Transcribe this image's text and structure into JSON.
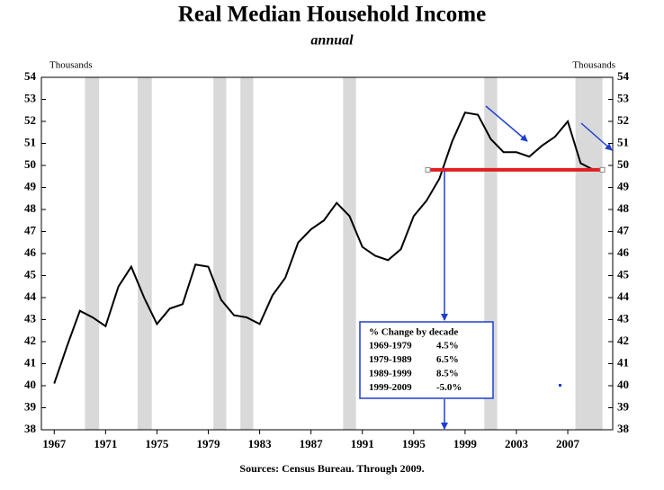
{
  "chart_data": {
    "type": "line",
    "title": "Real Median Household Income",
    "subtitle": "annual",
    "y_axis_label": "Thousands",
    "y2_axis_label": "Thousands",
    "source": "Sources: Census Bureau.  Through  2009.",
    "x": [
      1967,
      1968,
      1969,
      1970,
      1971,
      1972,
      1973,
      1974,
      1975,
      1976,
      1977,
      1978,
      1979,
      1980,
      1981,
      1982,
      1983,
      1984,
      1985,
      1986,
      1987,
      1988,
      1989,
      1990,
      1991,
      1992,
      1993,
      1994,
      1995,
      1996,
      1997,
      1998,
      1999,
      2000,
      2001,
      2002,
      2003,
      2004,
      2005,
      2006,
      2007,
      2008,
      2009
    ],
    "values": [
      40.1,
      41.8,
      43.4,
      43.1,
      42.7,
      44.5,
      45.4,
      44.0,
      42.8,
      43.5,
      43.7,
      45.5,
      45.4,
      43.9,
      43.2,
      43.1,
      42.8,
      44.1,
      44.9,
      46.5,
      47.1,
      47.5,
      48.3,
      47.7,
      46.3,
      45.9,
      45.7,
      46.2,
      47.7,
      48.4,
      49.4,
      51.1,
      52.4,
      52.3,
      51.2,
      50.6,
      50.6,
      50.4,
      50.9,
      51.3,
      52.0,
      50.1,
      49.8
    ],
    "color": "#000000",
    "xlim": [
      1966,
      2010.5
    ],
    "xticks": [
      1967,
      1971,
      1975,
      1979,
      1983,
      1987,
      1991,
      1995,
      1999,
      2003,
      2007
    ],
    "ylim": [
      38,
      54
    ],
    "yticks": [
      38,
      39,
      40,
      41,
      42,
      43,
      44,
      45,
      46,
      47,
      48,
      49,
      50,
      51,
      52,
      53,
      54
    ],
    "recessions": [
      [
        1969.4,
        1970.5
      ],
      [
        1973.5,
        1974.6
      ],
      [
        1979.4,
        1980.4
      ],
      [
        1981.5,
        1982.5
      ],
      [
        1989.5,
        1990.5
      ],
      [
        2000.5,
        2001.5
      ],
      [
        2007.6,
        2009.7
      ]
    ],
    "recession_color": "#d9d9d9",
    "reference_line": {
      "x": [
        1996.1,
        2009.7
      ],
      "y": 49.8,
      "color": "#e02020"
    },
    "annotation": {
      "title": "% Change by decade",
      "rows": [
        [
          "1969-1979",
          "4.5%"
        ],
        [
          "1979-1989",
          "6.5%"
        ],
        [
          "1989-1999",
          "8.5%"
        ],
        [
          "1999-2009",
          "-5.0%"
        ]
      ]
    },
    "grid": false
  }
}
